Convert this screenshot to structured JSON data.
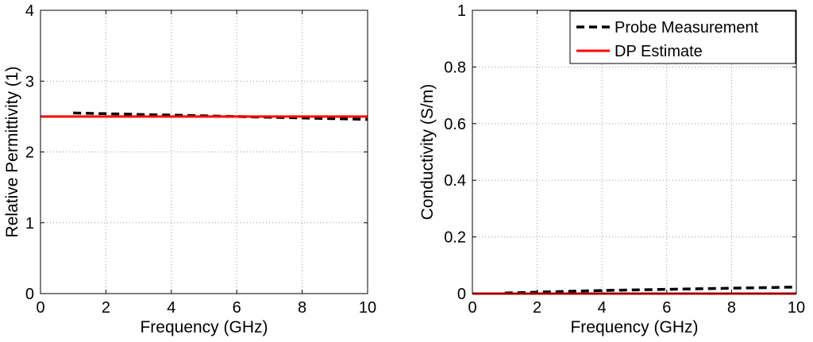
{
  "chart_data": [
    {
      "type": "line",
      "title": "",
      "xlabel": "Frequency (GHz)",
      "ylabel": "Relative Permittivity (1)",
      "xlim": [
        0,
        10
      ],
      "ylim": [
        0,
        4
      ],
      "xticks": [
        "0",
        "2",
        "4",
        "6",
        "8",
        "10"
      ],
      "yticks": [
        "0",
        "1",
        "2",
        "3",
        "4"
      ],
      "grid": true,
      "legend": false,
      "series": [
        {
          "name": "Probe Measurement",
          "style": "dashed",
          "color": "#000000",
          "x": [
            1,
            2,
            3,
            4,
            5,
            6,
            7,
            8,
            9,
            10
          ],
          "y": [
            2.55,
            2.54,
            2.53,
            2.52,
            2.51,
            2.5,
            2.49,
            2.48,
            2.47,
            2.46
          ]
        },
        {
          "name": "DP Estimate",
          "style": "solid",
          "color": "#ff0000",
          "x": [
            0,
            10
          ],
          "y": [
            2.5,
            2.5
          ]
        }
      ]
    },
    {
      "type": "line",
      "title": "",
      "xlabel": "Frequency (GHz)",
      "ylabel": "Conductivity (S/m)",
      "xlim": [
        0,
        10
      ],
      "ylim": [
        0,
        1
      ],
      "xticks": [
        "0",
        "2",
        "4",
        "6",
        "8",
        "10"
      ],
      "yticks": [
        "0",
        "0.2",
        "0.4",
        "0.6",
        "0.8",
        "1"
      ],
      "grid": true,
      "legend": true,
      "legend_position": "top-right",
      "series": [
        {
          "name": "Probe Measurement",
          "style": "dashed",
          "color": "#000000",
          "x": [
            1,
            2,
            3,
            4,
            5,
            6,
            7,
            8,
            9,
            10
          ],
          "y": [
            0.002,
            0.005,
            0.008,
            0.011,
            0.013,
            0.015,
            0.017,
            0.019,
            0.021,
            0.023
          ]
        },
        {
          "name": "DP Estimate",
          "style": "solid",
          "color": "#ff0000",
          "x": [
            0,
            10
          ],
          "y": [
            0,
            0
          ]
        }
      ]
    }
  ]
}
